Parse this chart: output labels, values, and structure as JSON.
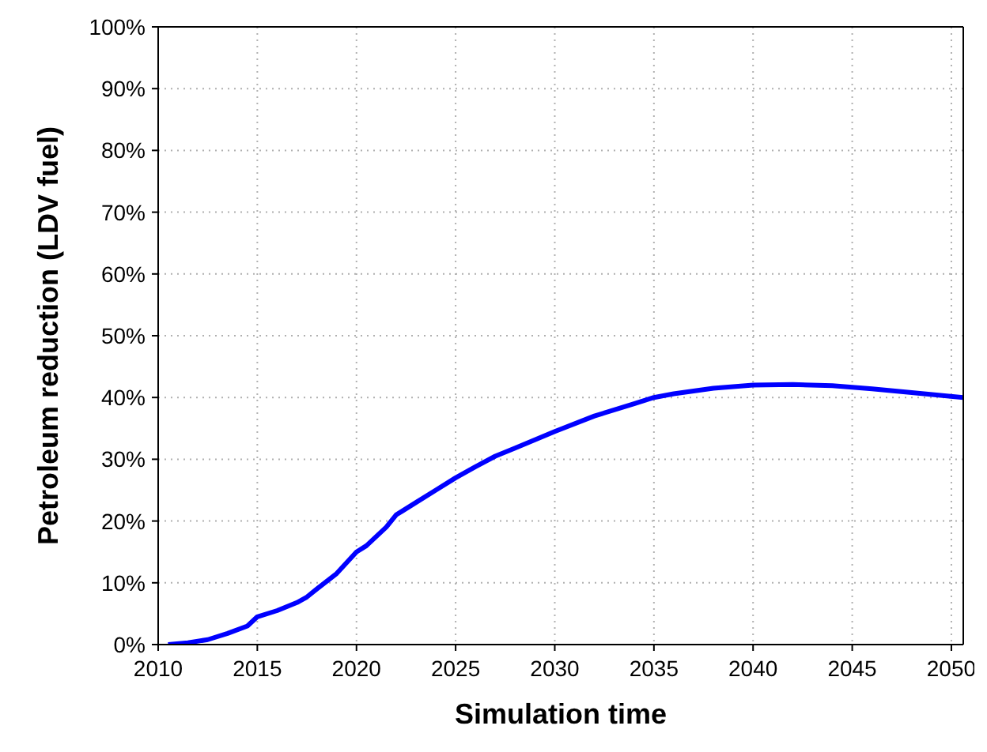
{
  "chart_data": {
    "type": "line",
    "xlabel": "Simulation time",
    "ylabel": "Petroleum reduction (LDV fuel)",
    "x": [
      2010.5,
      2011.5,
      2012.5,
      2013.5,
      2014.5,
      2015,
      2016,
      2017,
      2017.5,
      2018,
      2019,
      2020,
      2020.5,
      2021,
      2021.5,
      2022,
      2023,
      2024,
      2025,
      2026,
      2027,
      2028,
      2030,
      2032,
      2034,
      2035,
      2036,
      2038,
      2040,
      2042,
      2044,
      2046,
      2048,
      2050.6
    ],
    "series": [
      {
        "color": "#0000ff",
        "values": [
          0,
          0.3,
          0.8,
          1.8,
          3,
          4.5,
          5.5,
          6.8,
          7.7,
          9,
          11.5,
          15,
          16,
          17.5,
          19,
          21,
          23,
          25,
          27,
          28.8,
          30.5,
          31.8,
          34.5,
          37,
          39,
          40,
          40.6,
          41.5,
          42,
          42.1,
          41.9,
          41.4,
          40.8,
          40
        ]
      }
    ],
    "xlim": [
      2010,
      2050.6
    ],
    "xticks": [
      2010,
      2015,
      2020,
      2025,
      2030,
      2035,
      2040,
      2045,
      2050
    ],
    "ylim": [
      0,
      100
    ],
    "yticks": [
      {
        "value": 0,
        "label": "0%"
      },
      {
        "value": 10,
        "label": "10%"
      },
      {
        "value": 20,
        "label": "20%"
      },
      {
        "value": 30,
        "label": "30%"
      },
      {
        "value": 40,
        "label": "40%"
      },
      {
        "value": 50,
        "label": "50%"
      },
      {
        "value": 60,
        "label": "60%"
      },
      {
        "value": 70,
        "label": "70%"
      },
      {
        "value": 80,
        "label": "80%"
      },
      {
        "value": 90,
        "label": "90%"
      },
      {
        "value": 100,
        "label": "100%"
      }
    ],
    "grid": true,
    "line_style": "solid",
    "marker": "none"
  }
}
